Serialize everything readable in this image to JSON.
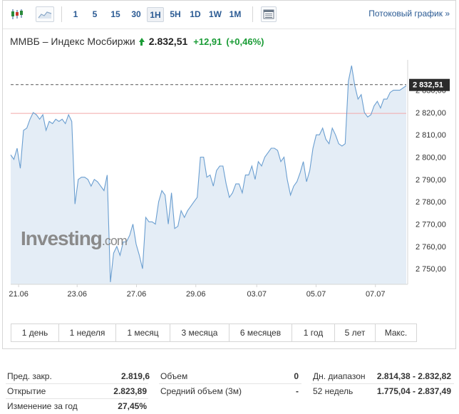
{
  "toolbar": {
    "icons": [
      "candlestick-icon",
      "area-chart-icon",
      "table-icon"
    ],
    "intervals": [
      "1",
      "5",
      "15",
      "30",
      "1H",
      "5H",
      "1D",
      "1W",
      "1M"
    ],
    "active_interval": "1H",
    "stream_link": "Потоковый график »"
  },
  "header": {
    "name": "ММВБ – Индекс Мосбиржи",
    "price": "2.832,51",
    "change": "+12,91",
    "change_pct": "(+0,46%)",
    "up_color": "#1a9c36"
  },
  "chart_data": {
    "type": "area",
    "x_labels": [
      "21.06",
      "23.06",
      "27.06",
      "29.06",
      "03.07",
      "05.07",
      "07.07"
    ],
    "y_ticks": [
      "2 750,00",
      "2 760,00",
      "2 770,00",
      "2 780,00",
      "2 790,00",
      "2 800,00",
      "2 810,00",
      "2 820,00",
      "2 830,00"
    ],
    "ylim": [
      2743,
      2842
    ],
    "current_price_label": "2 832,51",
    "current_price": 2832.51,
    "prev_close": 2819.6,
    "line_color": "#6a9ed0",
    "fill_color": "#e4edf6",
    "prev_close_color": "#f2a9a9",
    "values": [
      2801,
      2799,
      2804,
      2795,
      2812,
      2813,
      2817,
      2820,
      2819,
      2817,
      2819,
      2812,
      2816,
      2815,
      2817,
      2816,
      2817,
      2815,
      2819,
      2816,
      2779,
      2790,
      2791,
      2791,
      2790,
      2787,
      2790,
      2789,
      2787,
      2785,
      2792,
      2744,
      2757,
      2760,
      2756,
      2762,
      2762,
      2765,
      2770,
      2761,
      2756,
      2750,
      2773,
      2771,
      2771,
      2770,
      2780,
      2785,
      2783,
      2770,
      2784,
      2768,
      2769,
      2776,
      2773,
      2776,
      2778,
      2780,
      2782,
      2800,
      2800,
      2791,
      2792,
      2787,
      2794,
      2796,
      2796,
      2788,
      2782,
      2784,
      2788,
      2788,
      2784,
      2792,
      2792,
      2796,
      2790,
      2798,
      2796,
      2800,
      2802,
      2804,
      2804,
      2803,
      2798,
      2800,
      2790,
      2783,
      2787,
      2789,
      2793,
      2798,
      2789,
      2794,
      2804,
      2810,
      2810,
      2813,
      2808,
      2806,
      2813,
      2810,
      2806,
      2805,
      2806,
      2834,
      2841,
      2832,
      2826,
      2828,
      2820,
      2818,
      2819,
      2823,
      2825,
      2822,
      2826,
      2826,
      2829,
      2830,
      2830,
      2830,
      2831,
      2832
    ]
  },
  "ranges": [
    "1 день",
    "1 неделя",
    "1 месяц",
    "3 месяца",
    "6 месяцев",
    "1 год",
    "5 лет",
    "Макс."
  ],
  "watermark": "Investing.com",
  "stats": {
    "prev_close_label": "Пред. закр.",
    "prev_close_value": "2.819,6",
    "open_label": "Открытие",
    "open_value": "2.823,89",
    "year_change_label": "Изменение за год",
    "year_change_value": "27,45%",
    "volume_label": "Объем",
    "volume_value": "0",
    "avg_volume_label": "Средний объем (3м)",
    "avg_volume_value": "-",
    "day_range_label": "Дн. диапазон",
    "day_range_value": "2.814,38 - 2.832,82",
    "week52_label": "52 недель",
    "week52_value": "1.775,04 - 2.837,49"
  }
}
